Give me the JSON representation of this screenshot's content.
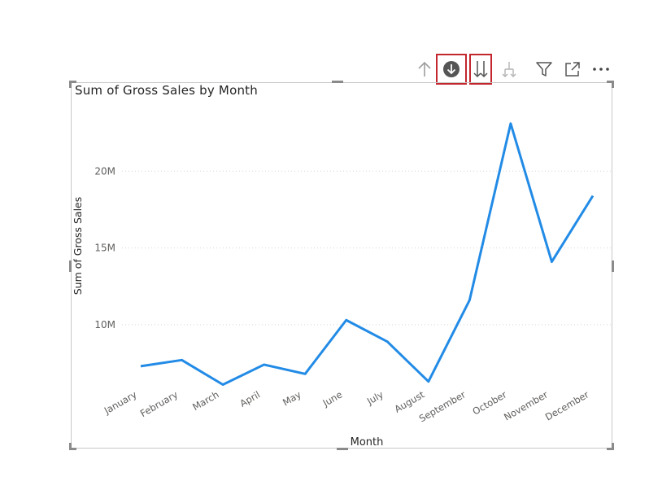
{
  "toolbar": {
    "icons": [
      "drill-up-icon",
      "drill-down-mode-icon",
      "go-to-next-level-icon",
      "expand-next-level-icon",
      "filter-icon",
      "focus-mode-icon",
      "more-options-icon"
    ],
    "highlight_color": "#c4262e"
  },
  "chart_data": {
    "type": "line",
    "title": "Sum of Gross Sales by Month",
    "xlabel": "Month",
    "ylabel": "Sum of Gross Sales",
    "categories": [
      "January",
      "February",
      "March",
      "April",
      "May",
      "June",
      "July",
      "August",
      "September",
      "October",
      "November",
      "December"
    ],
    "series": [
      {
        "values": [
          7.3,
          7.7,
          6.1,
          7.4,
          6.8,
          10.3,
          8.9,
          6.3,
          11.6,
          23.1,
          14.1,
          18.4
        ]
      }
    ],
    "ylim": [
      4.8,
      25
    ],
    "yticks": [
      10,
      15,
      20
    ],
    "ytick_labels": [
      "10M",
      "15M",
      "20M"
    ],
    "grid": true,
    "line_color": "#228be6"
  }
}
